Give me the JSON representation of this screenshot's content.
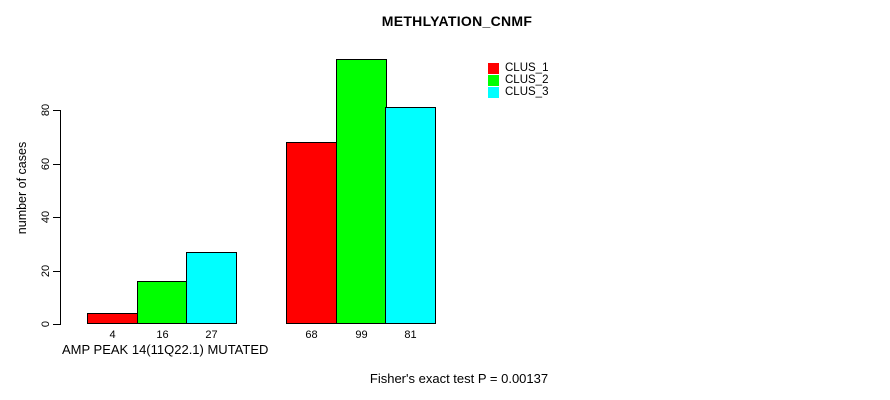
{
  "chart_data": {
    "type": "bar",
    "title": "METHLYATION_CNMF",
    "ylabel": "number of cases",
    "xlabel": "AMP PEAK 14(11Q22.1) MUTATED",
    "footnote": "Fisher's exact test P = 0.00137",
    "yticks": [
      0,
      20,
      40,
      60,
      80
    ],
    "ylim": [
      0,
      99
    ],
    "grid": false,
    "legend_position": "top-right",
    "background_color": "#ffffff",
    "bar_border_color": "#000000",
    "series": [
      {
        "name": "CLUS_1",
        "color": "#ff0000",
        "values": [
          4,
          68
        ]
      },
      {
        "name": "CLUS_2",
        "color": "#00ff00",
        "values": [
          16,
          99
        ]
      },
      {
        "name": "CLUS_3",
        "color": "#00ffff",
        "values": [
          27,
          81
        ]
      }
    ]
  }
}
